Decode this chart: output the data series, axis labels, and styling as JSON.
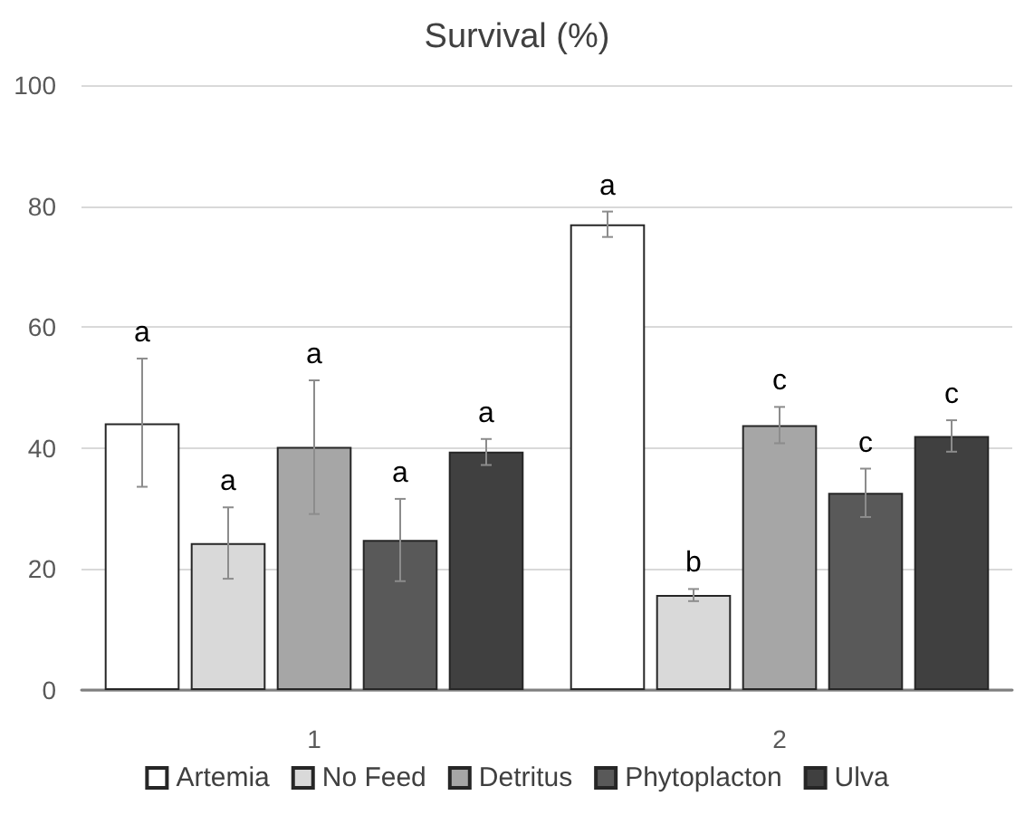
{
  "chart_data": {
    "type": "bar",
    "title": "Survival (%)",
    "categories": [
      "1",
      "2"
    ],
    "series": [
      {
        "name": "Artemia",
        "color": "#ffffff",
        "values": [
          44.1,
          77.0
        ],
        "errors": [
          [
            33.6,
            54.8
          ],
          [
            74.9,
            79.1
          ]
        ],
        "value_labels": [
          "a",
          "a"
        ]
      },
      {
        "name": "No Feed",
        "color": "#d9d9d9",
        "values": [
          24.3,
          15.7
        ],
        "errors": [
          [
            18.4,
            30.2
          ],
          [
            14.7,
            16.7
          ]
        ],
        "value_labels": [
          "a",
          "b"
        ]
      },
      {
        "name": "Detritus",
        "color": "#a6a6a6",
        "values": [
          40.2,
          43.8
        ],
        "errors": [
          [
            29.1,
            51.2
          ],
          [
            40.8,
            46.8
          ]
        ],
        "value_labels": [
          "a",
          "c"
        ]
      },
      {
        "name": "Phytoplacton",
        "color": "#595959",
        "values": [
          24.8,
          32.6
        ],
        "errors": [
          [
            18.0,
            31.6
          ],
          [
            28.6,
            36.6
          ]
        ],
        "value_labels": [
          "a",
          "c"
        ]
      },
      {
        "name": "Ulva",
        "color": "#404040",
        "values": [
          39.4,
          42.0
        ],
        "errors": [
          [
            37.2,
            41.5
          ],
          [
            39.4,
            44.6
          ]
        ],
        "value_labels": [
          "a",
          "c"
        ]
      }
    ],
    "ylim": [
      0,
      100
    ],
    "yticks": [
      0,
      20,
      40,
      60,
      80,
      100
    ],
    "grid": "y",
    "legend": "bottom"
  }
}
